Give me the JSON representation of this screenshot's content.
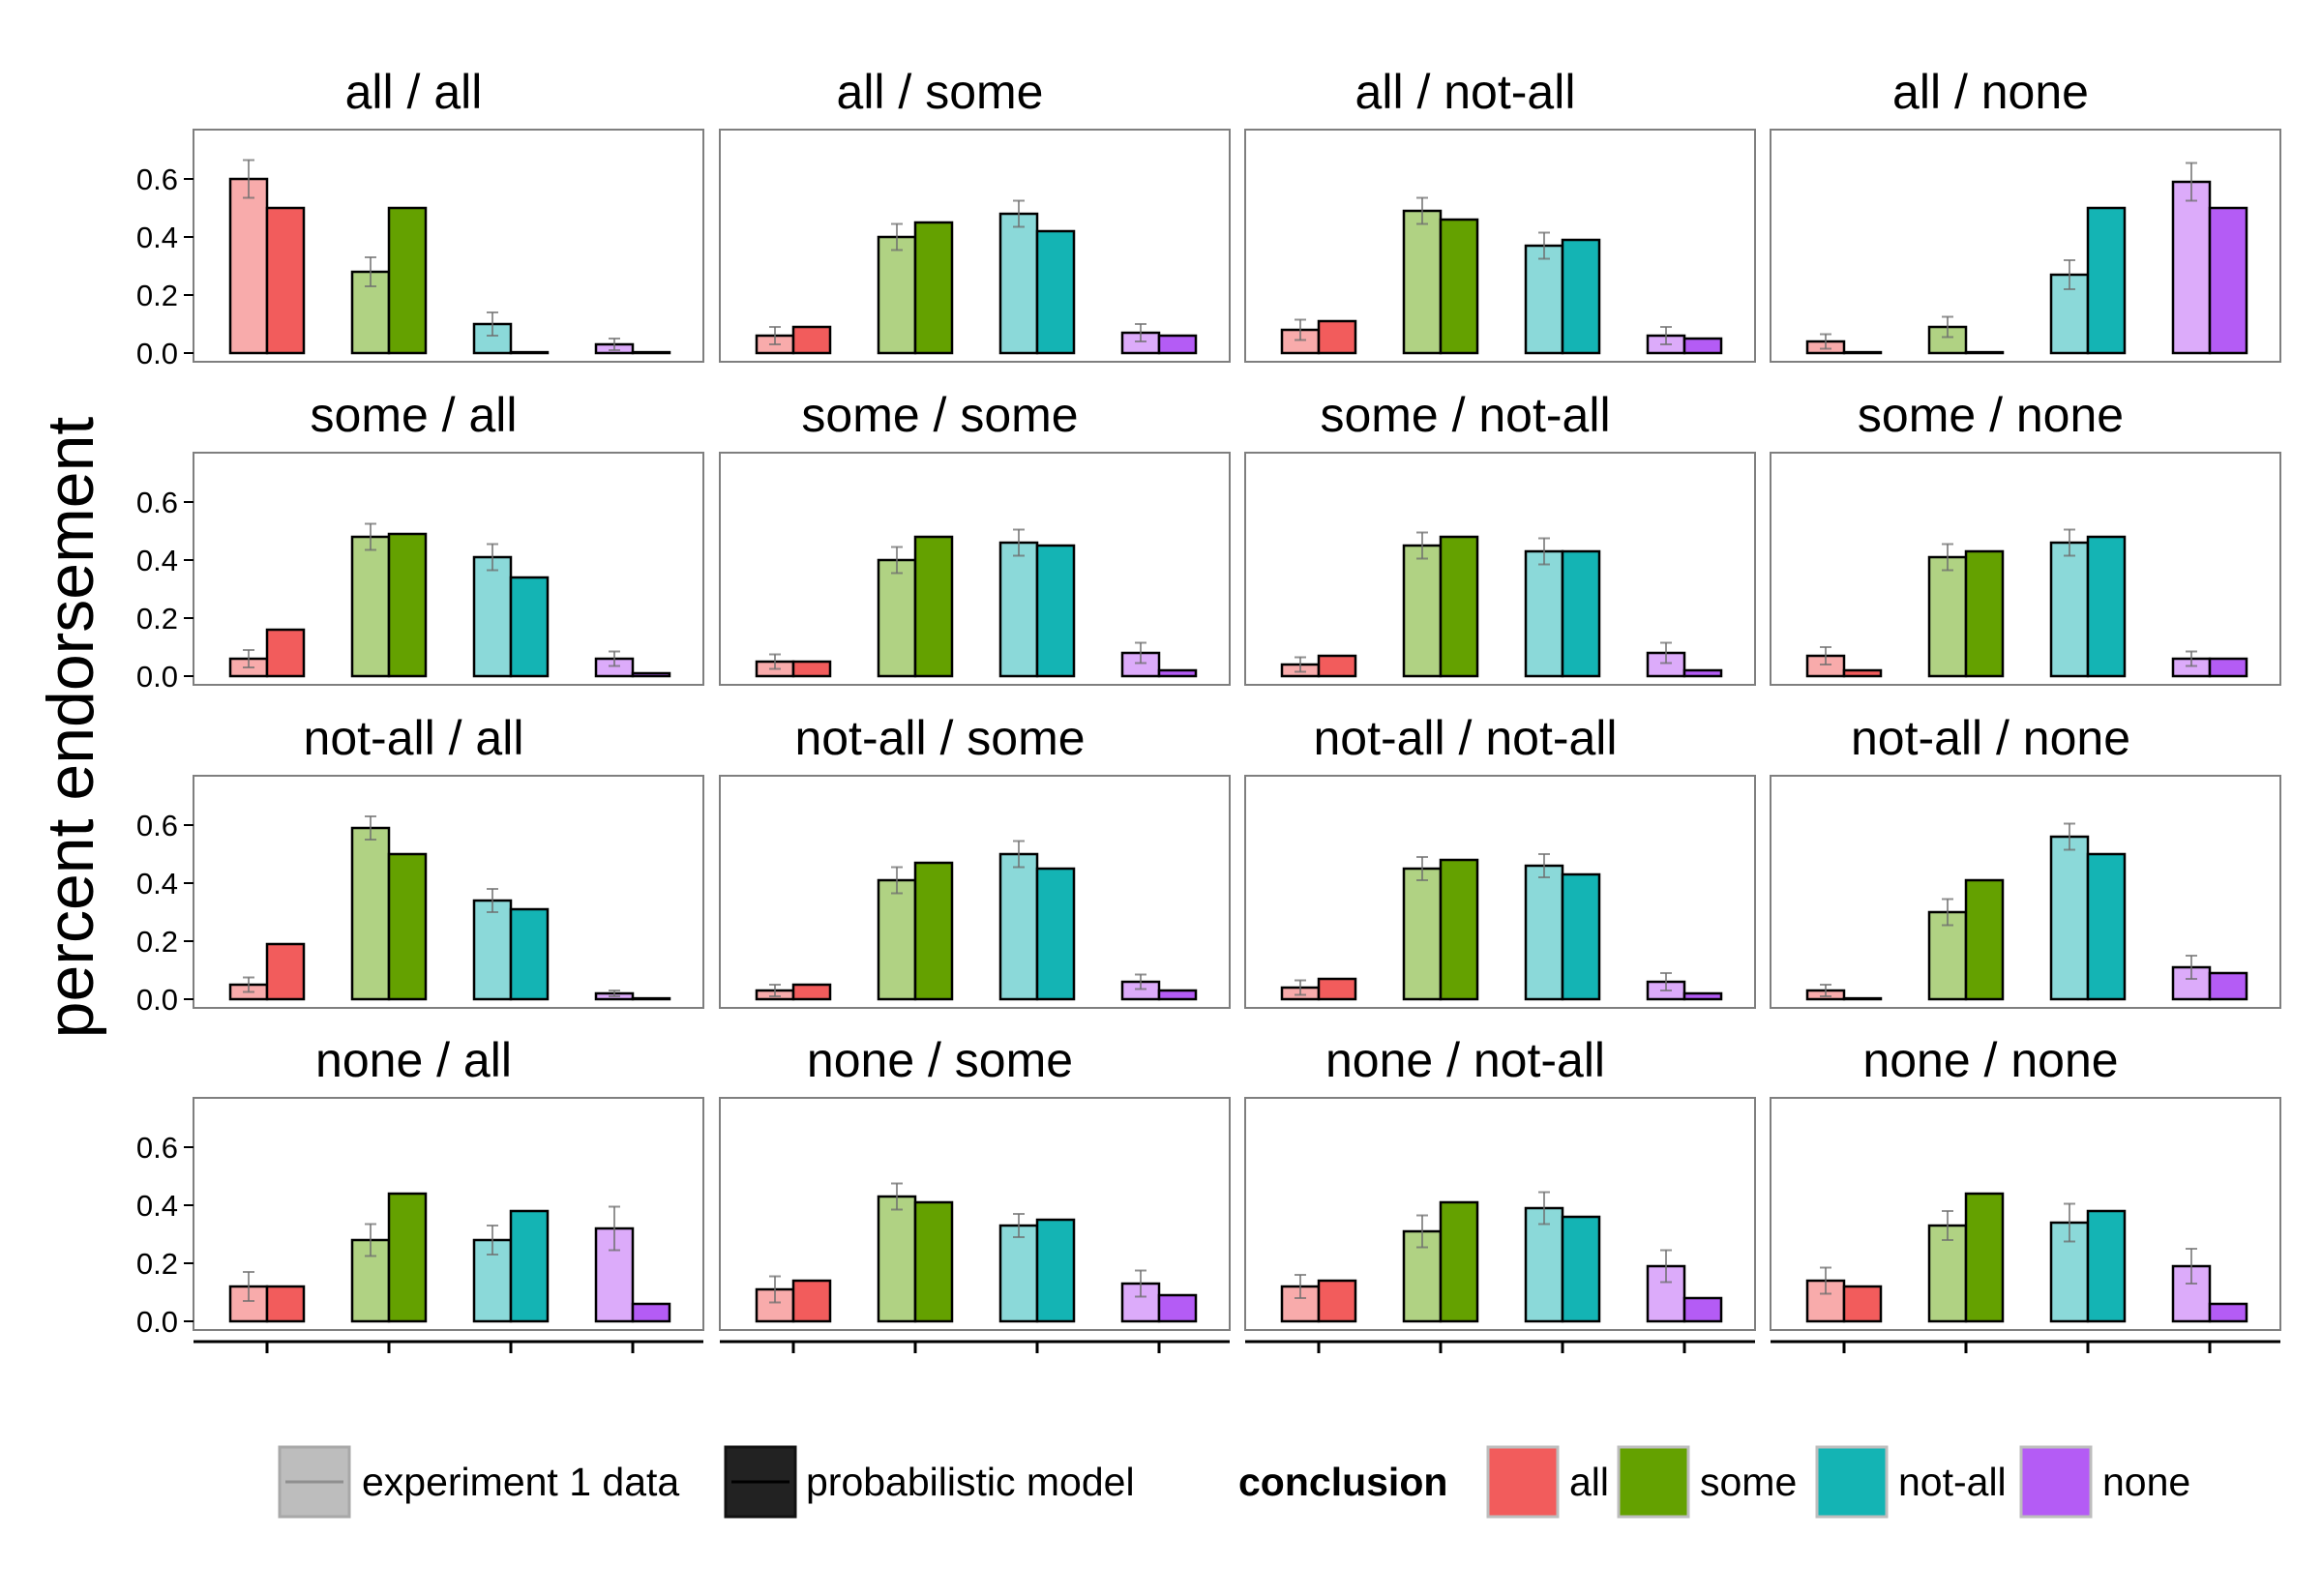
{
  "chart_data": {
    "type": "bar",
    "ylabel": "percent endorsement",
    "ylim": [
      0,
      0.78
    ],
    "yticks": [
      0.0,
      0.2,
      0.4,
      0.6
    ],
    "ytick_labels": [
      "0.0",
      "0.2",
      "0.4",
      "0.6"
    ],
    "categories": [
      "all",
      "some",
      "not-all",
      "none"
    ],
    "series_names": [
      "experiment 1 data",
      "probabilistic model"
    ],
    "legend": {
      "placement": "bottom",
      "source_items": [
        {
          "label": "experiment 1 data",
          "fill": "#bdbdbd",
          "border": "#a8a8a8",
          "line": "#8f8f8f"
        },
        {
          "label": "probabilistic model",
          "fill": "#222222",
          "border": "#111111",
          "line": "#000000"
        }
      ],
      "conclusion_title": "conclusion",
      "conclusion_items": [
        {
          "label": "all",
          "color": "#f25c5c"
        },
        {
          "label": "some",
          "color": "#64a100"
        },
        {
          "label": "not-all",
          "color": "#14b4b4"
        },
        {
          "label": "none",
          "color": "#b45cf5"
        }
      ]
    },
    "colors": {
      "model": [
        "#f25c5c",
        "#64a100",
        "#14b4b4",
        "#b45cf5"
      ],
      "data": [
        "#f8abab",
        "#b0d283",
        "#8bd9d9",
        "#dcabfa"
      ]
    },
    "panels": [
      {
        "title": "all / all",
        "data": [
          0.6,
          0.28,
          0.1,
          0.03
        ],
        "err": [
          0.065,
          0.05,
          0.04,
          0.02
        ],
        "model": [
          0.5,
          0.5,
          0.003,
          0.003
        ]
      },
      {
        "title": "all / some",
        "data": [
          0.06,
          0.4,
          0.48,
          0.07
        ],
        "err": [
          0.03,
          0.045,
          0.045,
          0.03
        ],
        "model": [
          0.09,
          0.45,
          0.42,
          0.06
        ]
      },
      {
        "title": "all / not-all",
        "data": [
          0.08,
          0.49,
          0.37,
          0.06
        ],
        "err": [
          0.035,
          0.045,
          0.045,
          0.03
        ],
        "model": [
          0.11,
          0.46,
          0.39,
          0.05
        ]
      },
      {
        "title": "all / none",
        "data": [
          0.04,
          0.09,
          0.27,
          0.59
        ],
        "err": [
          0.025,
          0.035,
          0.05,
          0.065
        ],
        "model": [
          0.003,
          0.003,
          0.5,
          0.5
        ]
      },
      {
        "title": "some / all",
        "data": [
          0.06,
          0.48,
          0.41,
          0.06
        ],
        "err": [
          0.03,
          0.045,
          0.045,
          0.025
        ],
        "model": [
          0.16,
          0.49,
          0.34,
          0.01
        ]
      },
      {
        "title": "some / some",
        "data": [
          0.05,
          0.4,
          0.46,
          0.08
        ],
        "err": [
          0.025,
          0.045,
          0.045,
          0.035
        ],
        "model": [
          0.05,
          0.48,
          0.45,
          0.02
        ]
      },
      {
        "title": "some / not-all",
        "data": [
          0.04,
          0.45,
          0.43,
          0.08
        ],
        "err": [
          0.025,
          0.045,
          0.045,
          0.035
        ],
        "model": [
          0.07,
          0.48,
          0.43,
          0.02
        ]
      },
      {
        "title": "some / none",
        "data": [
          0.07,
          0.41,
          0.46,
          0.06
        ],
        "err": [
          0.03,
          0.045,
          0.045,
          0.025
        ],
        "model": [
          0.02,
          0.43,
          0.48,
          0.06
        ]
      },
      {
        "title": "not-all / all",
        "data": [
          0.05,
          0.59,
          0.34,
          0.02
        ],
        "err": [
          0.025,
          0.04,
          0.04,
          0.01
        ],
        "model": [
          0.19,
          0.5,
          0.31,
          0.003
        ]
      },
      {
        "title": "not-all / some",
        "data": [
          0.03,
          0.41,
          0.5,
          0.06
        ],
        "err": [
          0.02,
          0.045,
          0.045,
          0.025
        ],
        "model": [
          0.05,
          0.47,
          0.45,
          0.03
        ]
      },
      {
        "title": "not-all / not-all",
        "data": [
          0.04,
          0.45,
          0.46,
          0.06
        ],
        "err": [
          0.025,
          0.04,
          0.04,
          0.03
        ],
        "model": [
          0.07,
          0.48,
          0.43,
          0.02
        ]
      },
      {
        "title": "not-all / none",
        "data": [
          0.03,
          0.3,
          0.56,
          0.11
        ],
        "err": [
          0.02,
          0.045,
          0.045,
          0.04
        ],
        "model": [
          0.003,
          0.41,
          0.5,
          0.09
        ]
      },
      {
        "title": "none / all",
        "data": [
          0.12,
          0.28,
          0.28,
          0.32
        ],
        "err": [
          0.05,
          0.055,
          0.05,
          0.075
        ],
        "model": [
          0.12,
          0.44,
          0.38,
          0.06
        ]
      },
      {
        "title": "none / some",
        "data": [
          0.11,
          0.43,
          0.33,
          0.13
        ],
        "err": [
          0.045,
          0.045,
          0.04,
          0.045
        ],
        "model": [
          0.14,
          0.41,
          0.35,
          0.09
        ]
      },
      {
        "title": "none / not-all",
        "data": [
          0.12,
          0.31,
          0.39,
          0.19
        ],
        "err": [
          0.04,
          0.055,
          0.055,
          0.055
        ],
        "model": [
          0.14,
          0.41,
          0.36,
          0.08
        ]
      },
      {
        "title": "none / none",
        "data": [
          0.14,
          0.33,
          0.34,
          0.19
        ],
        "err": [
          0.045,
          0.05,
          0.065,
          0.06
        ],
        "model": [
          0.12,
          0.44,
          0.38,
          0.06
        ]
      }
    ]
  }
}
